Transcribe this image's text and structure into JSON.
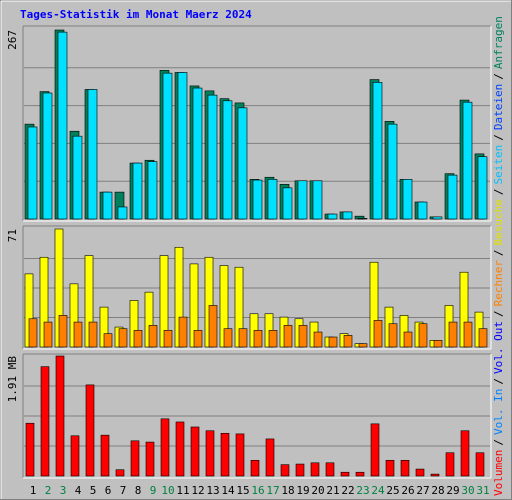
{
  "chart_data": [
    {
      "type": "bar",
      "title": "Tages-Statistik im Monat Maerz 2024",
      "ylim": [
        0,
        267
      ],
      "yticks": [
        267
      ],
      "series": [
        {
          "name": "Anfragen",
          "color": "#00805c",
          "values": [
            134,
            180,
            267,
            124,
            183,
            38,
            38,
            79,
            83,
            210,
            207,
            188,
            181,
            170,
            164,
            56,
            59,
            49,
            54,
            54,
            7,
            10,
            4,
            197,
            138,
            56,
            24,
            3,
            64,
            168,
            92
          ]
        },
        {
          "name": "Dateien",
          "color": "#00e0ff",
          "values": [
            130,
            178,
            264,
            117,
            183,
            38,
            17,
            79,
            81,
            206,
            207,
            185,
            175,
            167,
            157,
            55,
            56,
            44,
            54,
            54,
            7,
            10,
            1,
            193,
            134,
            56,
            24,
            3,
            62,
            165,
            88
          ]
        }
      ]
    },
    {
      "type": "bar",
      "ylim": [
        0,
        71
      ],
      "yticks": [
        71
      ],
      "series": [
        {
          "name": "Besuche",
          "color": "#ffff00",
          "values": [
            44,
            54,
            71,
            38,
            55,
            24,
            12,
            28,
            33,
            55,
            60,
            50,
            54,
            49,
            48,
            20,
            20,
            18,
            17,
            15,
            6,
            8,
            2,
            51,
            24,
            19,
            15,
            4,
            25,
            45,
            21
          ]
        },
        {
          "name": "Rechner",
          "color": "#ff8000",
          "values": [
            17,
            15,
            19,
            15,
            15,
            8,
            11,
            10,
            13,
            10,
            18,
            10,
            25,
            11,
            11,
            10,
            10,
            13,
            13,
            9,
            6,
            7,
            2,
            16,
            14,
            9,
            14,
            4,
            15,
            15,
            11
          ]
        }
      ]
    },
    {
      "type": "bar",
      "ylim": [
        0,
        1.91
      ],
      "yticks": [
        {
          "value": 1.91,
          "label": "1.91 MB"
        }
      ],
      "categories": [
        "1",
        "2",
        "3",
        "4",
        "5",
        "6",
        "7",
        "8",
        "9",
        "10",
        "11",
        "12",
        "13",
        "14",
        "15",
        "16",
        "17",
        "18",
        "19",
        "20",
        "21",
        "22",
        "23",
        "24",
        "25",
        "26",
        "27",
        "28",
        "29",
        "30",
        "31"
      ],
      "category_colors": [
        "#000000",
        "#008040",
        "#008040",
        "#000000",
        "#000000",
        "#000000",
        "#000000",
        "#000000",
        "#008040",
        "#008040",
        "#000000",
        "#000000",
        "#000000",
        "#000000",
        "#000000",
        "#008040",
        "#008040",
        "#000000",
        "#000000",
        "#000000",
        "#000000",
        "#000000",
        "#008040",
        "#008040",
        "#000000",
        "#000000",
        "#000000",
        "#000000",
        "#000000",
        "#008040",
        "#008040"
      ],
      "series": [
        {
          "name": "Volumen",
          "color": "#ff0000",
          "values": [
            0.84,
            1.74,
            1.91,
            0.64,
            1.45,
            0.65,
            0.1,
            0.56,
            0.54,
            0.91,
            0.86,
            0.78,
            0.72,
            0.68,
            0.67,
            0.25,
            0.59,
            0.18,
            0.19,
            0.21,
            0.21,
            0.06,
            0.06,
            0.83,
            0.25,
            0.25,
            0.11,
            0.03,
            0.37,
            0.72,
            0.37
          ]
        }
      ]
    }
  ],
  "legend": {
    "separator": "/",
    "items": [
      {
        "text": "Volumen",
        "color": "#ff0000"
      },
      {
        "text": "Vol. In",
        "color": "#0080ff"
      },
      {
        "text": "Vol. Out",
        "color": "#0000ff"
      },
      {
        "text": "Rechner",
        "color": "#ff8000"
      },
      {
        "text": "Besuche",
        "color": "#e0e000"
      },
      {
        "text": "Seiten",
        "color": "#00c0ff"
      },
      {
        "text": "Dateien",
        "color": "#0040ff"
      },
      {
        "text": "Anfragen",
        "color": "#00805c"
      }
    ]
  }
}
